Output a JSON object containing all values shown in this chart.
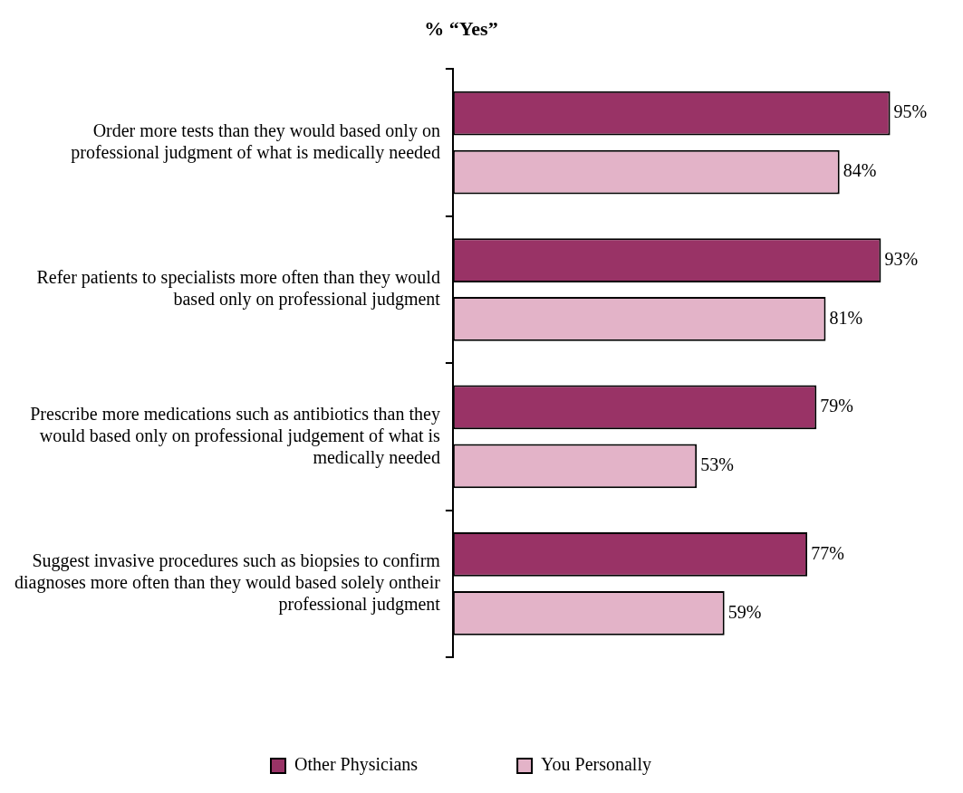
{
  "chart_data": {
    "type": "bar",
    "orientation": "horizontal",
    "title": "% “Yes”",
    "categories": [
      "Order more tests than they would based only on professional judgment of what is medically needed",
      "Refer patients to specialists more often than they would based only on professional judgment",
      "Prescribe more medications such as antibiotics than they would based only on professional judgement of what is medically needed",
      "Suggest invasive procedures such as biopsies to confirm diagnoses more often than they would based solely ontheir professional judgment"
    ],
    "series": [
      {
        "name": "Other Physicians",
        "color": "#993366",
        "values": [
          95,
          93,
          79,
          77
        ],
        "value_labels": [
          "95%",
          "93%",
          "79%",
          "77%"
        ]
      },
      {
        "name": "You Personally",
        "color": "#e3b3c8",
        "values": [
          84,
          81,
          53,
          59
        ],
        "value_labels": [
          "84%",
          "81%",
          "53%",
          "59%"
        ]
      }
    ],
    "legend": "bottom"
  }
}
